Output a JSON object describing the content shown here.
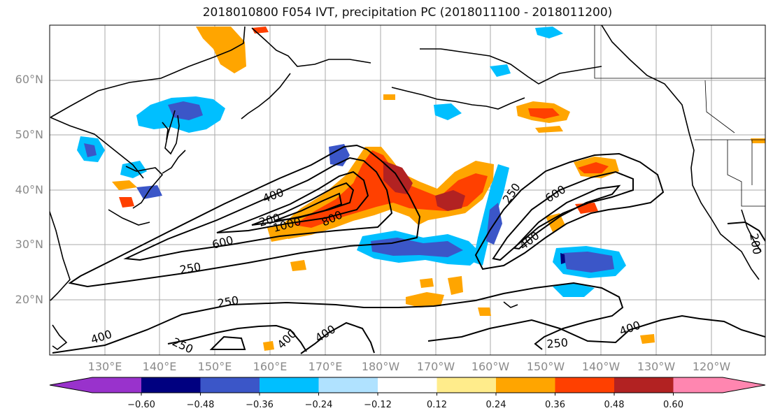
{
  "title": "2018010800 F054 IVT, precipitation PC (2018011100 - 2018011200)",
  "lat_labels": [
    "60°N",
    "50°N",
    "40°N",
    "30°N",
    "20°N"
  ],
  "lon_labels": [
    "130°E",
    "140°E",
    "150°E",
    "160°E",
    "170°E",
    "180°W",
    "170°W",
    "160°W",
    "150°W",
    "140°W",
    "130°W",
    "120°W"
  ],
  "contour_labels": [
    "400",
    "600",
    "250",
    "1000",
    "800",
    "250",
    "600",
    "400",
    "250",
    "400",
    "400",
    "400",
    "250",
    "400",
    "250",
    "200",
    "200"
  ],
  "colorbar": {
    "ticks": [
      "−0.60",
      "−0.48",
      "−0.36",
      "−0.24",
      "−0.12",
      "0.12",
      "0.24",
      "0.36",
      "0.48",
      "0.60"
    ],
    "colors": [
      "#9932cc",
      "#000080",
      "#3b56c8",
      "#00bfff",
      "#b0e2ff",
      "#ffffff",
      "#ffec8b",
      "#ffa500",
      "#ff4000",
      "#b22222",
      "#ff86b0"
    ]
  }
}
